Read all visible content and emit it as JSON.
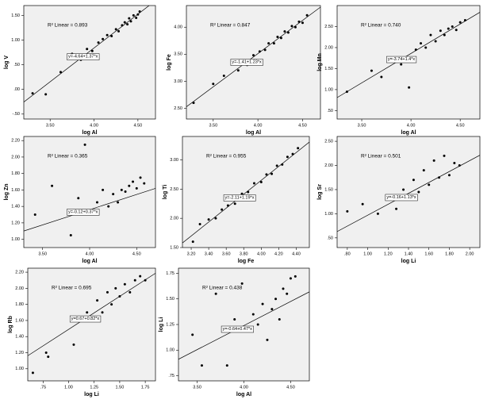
{
  "chart_data": [
    {
      "type": "scatter",
      "xlabel": "log Al",
      "ylabel": "log V",
      "r2_label": "R² Linear = 0.893",
      "fit": {
        "label": "y=-4.64+1.37*x",
        "intercept": -4.64,
        "slope": 1.37
      },
      "x": [
        3.3,
        3.45,
        3.62,
        3.75,
        3.85,
        3.92,
        3.98,
        4.05,
        4.1,
        4.15,
        4.2,
        4.25,
        4.28,
        4.32,
        4.35,
        4.38,
        4.4,
        4.42,
        4.45,
        4.48,
        4.5,
        4.52
      ],
      "y": [
        -0.08,
        -0.1,
        0.35,
        0.72,
        0.6,
        0.82,
        0.78,
        0.95,
        1.02,
        1.1,
        1.08,
        1.22,
        1.18,
        1.3,
        1.36,
        1.32,
        1.44,
        1.38,
        1.5,
        1.45,
        1.52,
        1.58
      ],
      "color": "#000000",
      "xlim": [
        3.2,
        4.7
      ],
      "ylim": [
        -0.6,
        1.7
      ],
      "xticks": [
        {
          "value": 3.5,
          "label": "3.50"
        },
        {
          "value": 4.0,
          "label": "4.00"
        },
        {
          "value": 4.5,
          "label": "4.50"
        }
      ],
      "yticks": [
        {
          "value": -0.5,
          "label": "-.50"
        },
        {
          "value": 0,
          "label": ".00"
        },
        {
          "value": 0.5,
          "label": ".50"
        },
        {
          "value": 1.0,
          "label": "1.00"
        },
        {
          "value": 1.5,
          "label": "1.50"
        }
      ]
    },
    {
      "type": "scatter",
      "xlabel": "log Al",
      "ylabel": "log Fe",
      "r2_label": "R² Linear = 0.847",
      "fit": {
        "label": "y=-1.41+1.23*x",
        "intercept": -1.41,
        "slope": 1.23
      },
      "x": [
        3.28,
        3.5,
        3.62,
        3.78,
        3.88,
        3.95,
        4.02,
        4.08,
        4.12,
        4.18,
        4.22,
        4.26,
        4.3,
        4.34,
        4.38,
        4.42,
        4.46,
        4.5,
        4.55
      ],
      "y": [
        2.6,
        2.95,
        3.1,
        3.2,
        3.3,
        3.48,
        3.55,
        3.58,
        3.7,
        3.7,
        3.82,
        3.8,
        3.92,
        3.9,
        4.02,
        4.0,
        4.1,
        4.08,
        4.22
      ],
      "color": "#000000",
      "xlim": [
        3.2,
        4.7
      ],
      "ylim": [
        2.3,
        4.4
      ],
      "xticks": [
        {
          "value": 3.5,
          "label": "3.50"
        },
        {
          "value": 4.0,
          "label": "4.00"
        },
        {
          "value": 4.5,
          "label": "4.50"
        }
      ],
      "yticks": [
        {
          "value": 2.5,
          "label": "2.50"
        },
        {
          "value": 3.0,
          "label": "3.00"
        },
        {
          "value": 3.5,
          "label": "3.50"
        },
        {
          "value": 4.0,
          "label": "4.00"
        }
      ]
    },
    {
      "type": "scatter",
      "xlabel": "log Al",
      "ylabel": "log Mn",
      "r2_label": "R² Linear = 0.740",
      "fit": {
        "label": "y=-3.74+1.4*x",
        "intercept": -3.74,
        "slope": 1.4
      },
      "x": [
        3.35,
        3.6,
        3.7,
        3.82,
        3.9,
        3.98,
        4.05,
        4.1,
        4.15,
        4.2,
        4.25,
        4.3,
        4.34,
        4.38,
        4.42,
        4.46,
        4.5,
        4.55
      ],
      "y": [
        0.95,
        1.45,
        1.3,
        1.7,
        1.6,
        1.05,
        1.95,
        2.1,
        2.0,
        2.3,
        2.15,
        2.4,
        2.3,
        2.45,
        2.5,
        2.42,
        2.6,
        2.65
      ],
      "color": "#000000",
      "xlim": [
        3.25,
        4.7
      ],
      "ylim": [
        0.3,
        3.0
      ],
      "xticks": [
        {
          "value": 3.5,
          "label": "3.50"
        },
        {
          "value": 4.0,
          "label": "4.00"
        },
        {
          "value": 4.5,
          "label": "4.50"
        }
      ],
      "yticks": [
        {
          "value": 0.5,
          "label": ".50"
        },
        {
          "value": 1.0,
          "label": "1.00"
        },
        {
          "value": 1.5,
          "label": "1.50"
        },
        {
          "value": 2.0,
          "label": "2.00"
        },
        {
          "value": 2.5,
          "label": "2.50"
        }
      ]
    },
    {
      "type": "scatter",
      "xlabel": "log Al",
      "ylabel": "log Zn",
      "r2_label": "R² Linear = 0.365",
      "fit": {
        "label": "y=-0.12+0.37*x",
        "intercept": -0.12,
        "slope": 0.37
      },
      "x": [
        3.42,
        3.6,
        3.8,
        3.88,
        3.95,
        4.02,
        4.08,
        4.14,
        4.2,
        4.25,
        4.3,
        4.34,
        4.38,
        4.42,
        4.46,
        4.5,
        4.54,
        4.58
      ],
      "y": [
        1.3,
        1.65,
        1.05,
        1.5,
        2.15,
        1.35,
        1.45,
        1.6,
        1.4,
        1.55,
        1.45,
        1.6,
        1.58,
        1.65,
        1.7,
        1.62,
        1.75,
        1.68
      ],
      "color": "#000000",
      "xlim": [
        3.3,
        4.7
      ],
      "ylim": [
        0.9,
        2.25
      ],
      "xticks": [
        {
          "value": 3.5,
          "label": "3.50"
        },
        {
          "value": 4.0,
          "label": "4.00"
        },
        {
          "value": 4.5,
          "label": "4.50"
        }
      ],
      "yticks": [
        {
          "value": 1.0,
          "label": "1.00"
        },
        {
          "value": 1.2,
          "label": "1.20"
        },
        {
          "value": 1.4,
          "label": "1.40"
        },
        {
          "value": 1.6,
          "label": "1.60"
        },
        {
          "value": 1.8,
          "label": "1.80"
        },
        {
          "value": 2.0,
          "label": "2.00"
        },
        {
          "value": 2.2,
          "label": "2.20"
        }
      ]
    },
    {
      "type": "scatter",
      "xlabel": "log Fe",
      "ylabel": "log Ti",
      "r2_label": "R² Linear = 0.955",
      "fit": {
        "label": "y=-2.11+1.19*x",
        "intercept": -2.11,
        "slope": 1.19
      },
      "x": [
        3.22,
        3.3,
        3.4,
        3.48,
        3.55,
        3.62,
        3.7,
        3.78,
        3.85,
        3.92,
        4.0,
        4.06,
        4.12,
        4.18,
        4.24,
        4.3,
        4.36,
        4.42
      ],
      "y": [
        1.6,
        1.9,
        1.98,
        2.0,
        2.15,
        2.22,
        2.25,
        2.42,
        2.45,
        2.6,
        2.62,
        2.75,
        2.76,
        2.9,
        2.92,
        3.05,
        3.1,
        3.2
      ],
      "color": "#000000",
      "xlim": [
        3.1,
        4.55
      ],
      "ylim": [
        1.5,
        3.4
      ],
      "xticks": [
        {
          "value": 3.2,
          "label": "3.20"
        },
        {
          "value": 3.4,
          "label": "3.40"
        },
        {
          "value": 3.6,
          "label": "3.60"
        },
        {
          "value": 3.8,
          "label": "3.80"
        },
        {
          "value": 4.0,
          "label": "4.00"
        },
        {
          "value": 4.2,
          "label": "4.20"
        },
        {
          "value": 4.4,
          "label": "4.40"
        }
      ],
      "yticks": [
        {
          "value": 1.5,
          "label": "1.50"
        },
        {
          "value": 2.0,
          "label": "2.00"
        },
        {
          "value": 2.5,
          "label": "2.50"
        },
        {
          "value": 3.0,
          "label": "3.00"
        }
      ]
    },
    {
      "type": "scatter",
      "xlabel": "log Li",
      "ylabel": "log Sr",
      "r2_label": "R² Linear = 0.501",
      "fit": {
        "label": "y=-0.16+1.13*x",
        "intercept": -0.16,
        "slope": 1.13
      },
      "x": [
        0.8,
        0.95,
        1.1,
        1.2,
        1.28,
        1.35,
        1.4,
        1.45,
        1.5,
        1.55,
        1.6,
        1.65,
        1.7,
        1.75,
        1.8,
        1.85,
        1.9
      ],
      "y": [
        1.05,
        1.2,
        1.0,
        1.35,
        1.1,
        1.5,
        1.3,
        1.7,
        1.45,
        1.9,
        1.6,
        2.1,
        1.75,
        2.2,
        1.8,
        2.05,
        2.0
      ],
      "color": "#000000",
      "xlim": [
        0.7,
        2.1
      ],
      "ylim": [
        0.3,
        2.6
      ],
      "xticks": [
        {
          "value": 0.8,
          "label": ".80"
        },
        {
          "value": 1.0,
          "label": "1.00"
        },
        {
          "value": 1.2,
          "label": "1.20"
        },
        {
          "value": 1.4,
          "label": "1.40"
        },
        {
          "value": 1.6,
          "label": "1.60"
        },
        {
          "value": 1.8,
          "label": "1.80"
        },
        {
          "value": 2.0,
          "label": "2.00"
        }
      ],
      "yticks": [
        {
          "value": 0.5,
          "label": ".50"
        },
        {
          "value": 1.0,
          "label": "1.00"
        },
        {
          "value": 1.5,
          "label": "1.50"
        },
        {
          "value": 2.0,
          "label": "2.00"
        },
        {
          "value": 2.5,
          "label": "2.50"
        }
      ]
    },
    {
      "type": "scatter",
      "xlabel": "log Li",
      "ylabel": "log Rb",
      "r2_label": "R² Linear = 0.695",
      "fit": {
        "label": "y=0.67+0.82*x",
        "intercept": 0.67,
        "slope": 0.82
      },
      "x": [
        0.65,
        0.78,
        0.8,
        1.05,
        1.1,
        1.18,
        1.22,
        1.28,
        1.33,
        1.38,
        1.42,
        1.46,
        1.5,
        1.55,
        1.6,
        1.65,
        1.7,
        1.75
      ],
      "y": [
        0.95,
        1.2,
        1.15,
        1.3,
        1.6,
        1.7,
        1.6,
        1.85,
        1.7,
        1.95,
        1.8,
        2.0,
        1.9,
        2.05,
        1.95,
        2.1,
        2.15,
        2.1
      ],
      "color": "#000000",
      "xlim": [
        0.6,
        1.85
      ],
      "ylim": [
        0.85,
        2.25
      ],
      "xticks": [
        {
          "value": 0.75,
          "label": ".75"
        },
        {
          "value": 1.0,
          "label": "1.00"
        },
        {
          "value": 1.25,
          "label": "1.25"
        },
        {
          "value": 1.5,
          "label": "1.50"
        },
        {
          "value": 1.75,
          "label": "1.75"
        }
      ],
      "yticks": [
        {
          "value": 1.0,
          "label": "1.00"
        },
        {
          "value": 1.2,
          "label": "1.20"
        },
        {
          "value": 1.4,
          "label": "1.40"
        },
        {
          "value": 1.6,
          "label": "1.60"
        },
        {
          "value": 1.8,
          "label": "1.80"
        },
        {
          "value": 2.0,
          "label": "2.00"
        },
        {
          "value": 2.2,
          "label": "2.20"
        }
      ]
    },
    {
      "type": "scatter",
      "xlabel": "log Al",
      "ylabel": "log Li",
      "r2_label": "R² Linear = 0.438",
      "fit": {
        "label": "y=-0.64+0.47*x",
        "intercept": -0.64,
        "slope": 0.47
      },
      "x": [
        3.45,
        3.55,
        3.7,
        3.82,
        3.9,
        3.98,
        4.05,
        4.1,
        4.15,
        4.2,
        4.25,
        4.3,
        4.34,
        4.38,
        4.42,
        4.46,
        4.5,
        4.55
      ],
      "y": [
        1.15,
        0.85,
        1.55,
        0.85,
        1.3,
        1.65,
        1.2,
        1.35,
        1.25,
        1.45,
        1.1,
        1.4,
        1.5,
        1.3,
        1.6,
        1.55,
        1.7,
        1.72
      ],
      "color": "#000000",
      "xlim": [
        3.3,
        4.7
      ],
      "ylim": [
        0.7,
        1.8
      ],
      "xticks": [
        {
          "value": 3.5,
          "label": "3.50"
        },
        {
          "value": 4.0,
          "label": "4.00"
        },
        {
          "value": 4.5,
          "label": "4.50"
        }
      ],
      "yticks": [
        {
          "value": 0.75,
          "label": ".75"
        },
        {
          "value": 1.0,
          "label": "1.00"
        },
        {
          "value": 1.25,
          "label": "1.25"
        },
        {
          "value": 1.5,
          "label": "1.50"
        },
        {
          "value": 1.75,
          "label": "1.75"
        }
      ]
    }
  ]
}
